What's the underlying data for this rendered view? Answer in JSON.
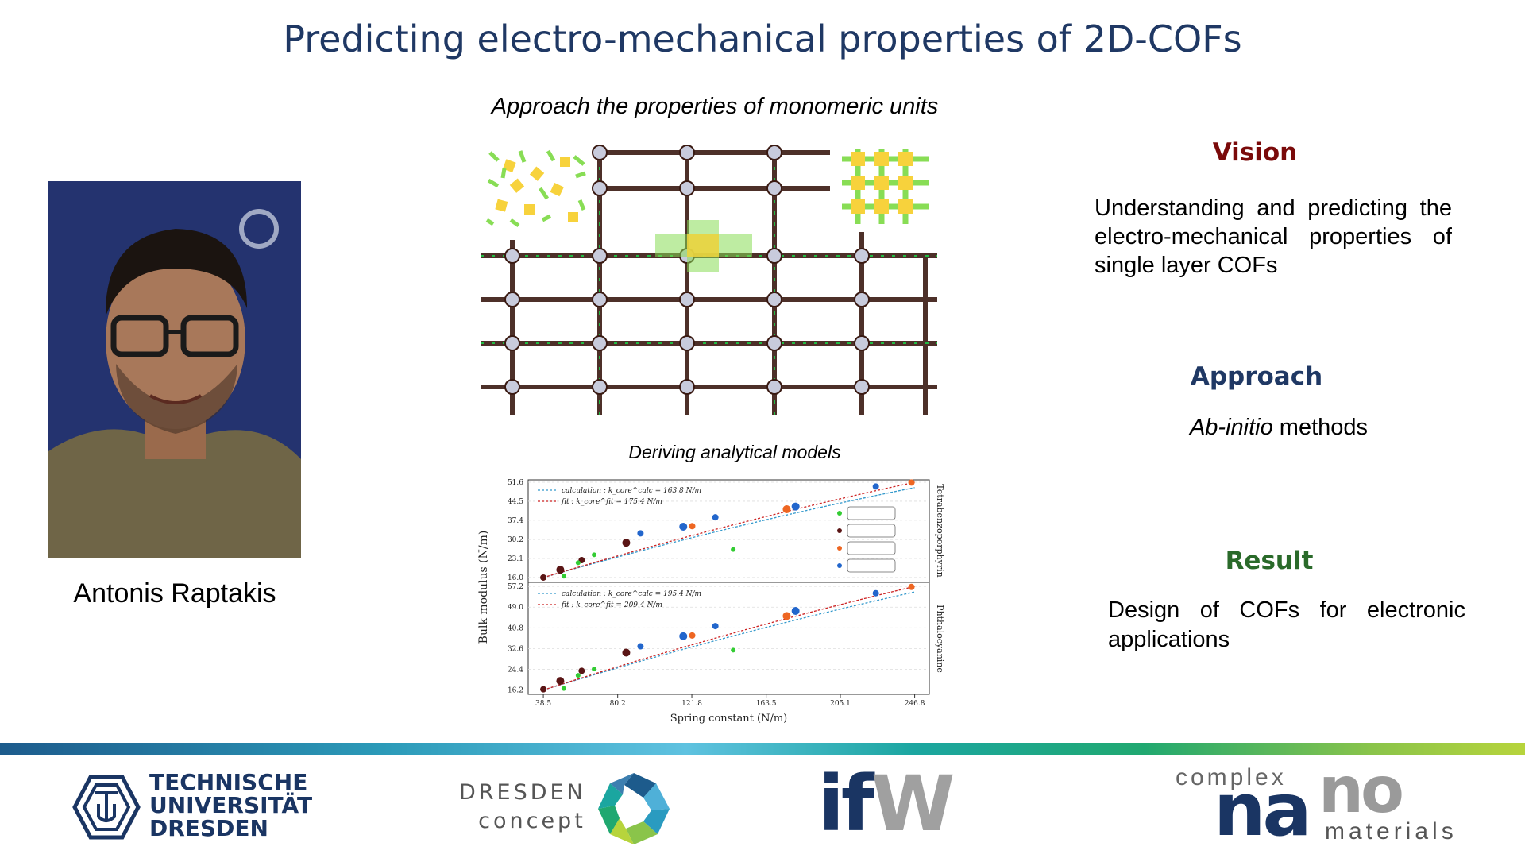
{
  "slide": {
    "title": "Predicting electro-mechanical properties of 2D-COFs",
    "subtitle": "Approach the properties of monomeric units",
    "person_name": "Antonis Raptakis",
    "models_caption": "Deriving analytical models"
  },
  "vision": {
    "heading": "Vision",
    "text": "Understanding and predicting the electro-mechanical properties of single layer COFs"
  },
  "approach": {
    "heading": "Approach",
    "text_italic": "Ab-initio",
    "text_rest": " methods"
  },
  "result": {
    "heading": "Result",
    "text": "Design of COFs for electronic applications"
  },
  "logos": {
    "tu": [
      "TECHNISCHE",
      "UNIVERSITÄT",
      "DRESDEN"
    ],
    "dresden_concept": [
      "DRESDEN",
      "concept"
    ],
    "ifw_i": "if",
    "ifw_w": "W",
    "cnm_complex": "complex",
    "cnm_na": "na",
    "cnm_no": "no",
    "cnm_materials": "materials"
  },
  "colors": {
    "title": "#1f3864",
    "vision": "#7a0a0a",
    "approach": "#1f3864",
    "result": "#2a6a2a",
    "calc_line": "#3399cc",
    "fit_line": "#cc2222",
    "series_green": "#33cc33",
    "series_black": "#5a1515",
    "series_orange": "#ee6622",
    "series_blue": "#2266cc"
  },
  "chart_data": {
    "type": "scatter",
    "xlabel": "Spring constant (N/m)",
    "ylabel": "Bulk modulus (N/m)",
    "xticks": [
      "38.5",
      "80.2",
      "121.8",
      "163.5",
      "205.1",
      "246.8"
    ],
    "xlim": [
      30,
      255
    ],
    "panels": [
      {
        "name": "Tetrabenzoporphyrin",
        "yticks": [
          "16.0",
          "23.1",
          "30.2",
          "37.4",
          "44.5",
          "51.6"
        ],
        "ylim": [
          14.5,
          52.5
        ],
        "legend_calc": "calculation :  k_core^calc = 163.8 N/m",
        "legend_fit": "fit :  k_core^fit = 175.4 N/m",
        "lines": {
          "calculation": {
            "x": [
              38.5,
              246.8
            ],
            "y": [
              16.0,
              49.6
            ]
          },
          "fit": {
            "x": [
              38.5,
              246.8
            ],
            "y": [
              16.0,
              51.6
            ]
          }
        },
        "series": [
          {
            "color_key": "series_black",
            "points": [
              [
                38.5,
                16.0
              ],
              [
                48,
                18.9
              ],
              [
                60,
                22.5
              ],
              [
                85,
                29.0
              ]
            ]
          },
          {
            "color_key": "series_green",
            "points": [
              [
                50,
                16.5
              ],
              [
                58,
                21.5
              ],
              [
                67,
                24.5
              ],
              [
                145,
                26.5
              ]
            ]
          },
          {
            "color_key": "series_blue",
            "points": [
              [
                93,
                32.5
              ],
              [
                117,
                35.0
              ],
              [
                135,
                38.5
              ],
              [
                180,
                42.5
              ],
              [
                225,
                50.0
              ]
            ]
          },
          {
            "color_key": "series_orange",
            "points": [
              [
                122,
                35.2
              ],
              [
                175,
                41.5
              ],
              [
                245,
                51.5
              ]
            ]
          }
        ]
      },
      {
        "name": "Phthalocyanine",
        "yticks": [
          "16.2",
          "24.4",
          "32.6",
          "40.8",
          "49.0",
          "57.2"
        ],
        "ylim": [
          14.5,
          58.5
        ],
        "legend_calc": "calculation :  k_core^calc = 195.4 N/m",
        "legend_fit": "fit :  k_core^fit = 209.4 N/m",
        "lines": {
          "calculation": {
            "x": [
              38.5,
              246.8
            ],
            "y": [
              16.2,
              55.0
            ]
          },
          "fit": {
            "x": [
              38.5,
              246.8
            ],
            "y": [
              16.2,
              57.2
            ]
          }
        },
        "series": [
          {
            "color_key": "series_black",
            "points": [
              [
                38.5,
                16.5
              ],
              [
                48,
                19.8
              ],
              [
                60,
                23.8
              ],
              [
                85,
                31.0
              ]
            ]
          },
          {
            "color_key": "series_green",
            "points": [
              [
                50,
                16.8
              ],
              [
                58,
                22.0
              ],
              [
                67,
                24.5
              ],
              [
                145,
                32.0
              ]
            ]
          },
          {
            "color_key": "series_blue",
            "points": [
              [
                93,
                33.5
              ],
              [
                117,
                37.5
              ],
              [
                135,
                41.5
              ],
              [
                180,
                47.5
              ],
              [
                225,
                54.5
              ]
            ]
          },
          {
            "color_key": "series_orange",
            "points": [
              [
                122,
                37.8
              ],
              [
                175,
                45.5
              ],
              [
                245,
                57.0
              ]
            ]
          }
        ]
      }
    ]
  }
}
